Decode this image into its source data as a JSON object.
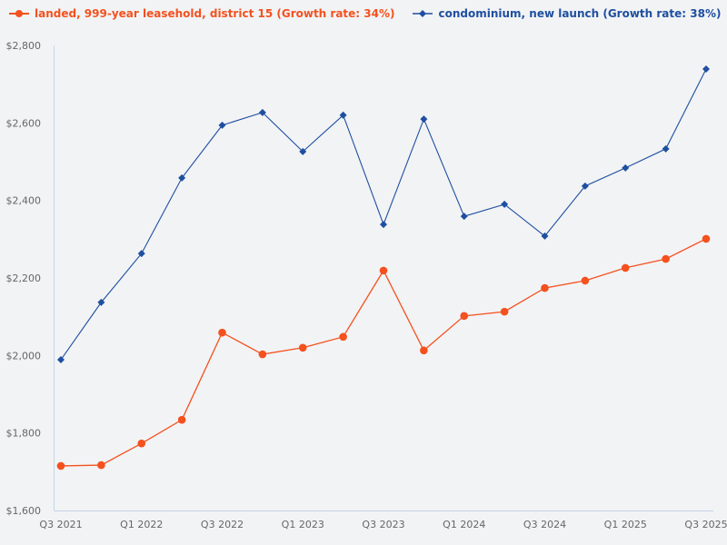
{
  "chart_data": {
    "type": "line",
    "title": "",
    "xlabel": "",
    "ylabel": "",
    "ylim": [
      1600,
      2800
    ],
    "yticks": [
      1600,
      1800,
      2000,
      2200,
      2400,
      2600,
      2800
    ],
    "ytick_labels": [
      "$1,600",
      "$1,800",
      "$2,000",
      "$2,200",
      "$2,400",
      "$2,600",
      "$2,800"
    ],
    "x": [
      "Q3 2021",
      "Q4 2021",
      "Q1 2022",
      "Q2 2022",
      "Q3 2022",
      "Q4 2022",
      "Q1 2023",
      "Q2 2023",
      "Q3 2023",
      "Q4 2023",
      "Q1 2024",
      "Q2 2024",
      "Q3 2024",
      "Q4 2024",
      "Q1 2025",
      "Q2 2025",
      "Q3 2025"
    ],
    "xtick_labels": [
      "Q3 2021",
      "Q1 2022",
      "Q3 2022",
      "Q1 2023",
      "Q3 2023",
      "Q1 2024",
      "Q3 2024",
      "Q1 2025",
      "Q3 2025"
    ],
    "grid": false,
    "legend_position": "top-left",
    "series": [
      {
        "name": "landed, 999-year leasehold, district 15 (Growth rate: 34%)",
        "color": "#f4511e",
        "marker": "circle",
        "values": [
          1715,
          1717,
          1773,
          1834,
          2059,
          2003,
          2020,
          2048,
          2219,
          2013,
          2102,
          2113,
          2174,
          2193,
          2226,
          2249,
          2301
        ]
      },
      {
        "name": "condominium, new launch (Growth rate: 38%)",
        "color": "#1e4fa0",
        "marker": "diamond",
        "values": [
          1989,
          2137,
          2263,
          2458,
          2594,
          2627,
          2526,
          2620,
          2338,
          2610,
          2359,
          2390,
          2308,
          2437,
          2484,
          2533,
          2739
        ]
      }
    ]
  },
  "legend": {
    "items": [
      {
        "label": "landed, 999-year leasehold, district 15 (Growth rate: 34%)",
        "color": "#f4511e"
      },
      {
        "label": "condominium, new launch (Growth rate: 38%)",
        "color": "#1e4fa0"
      }
    ]
  },
  "colors": {
    "background": "#f2f3f5",
    "axis": "#c5d3e8",
    "tick_text": "#666666"
  }
}
